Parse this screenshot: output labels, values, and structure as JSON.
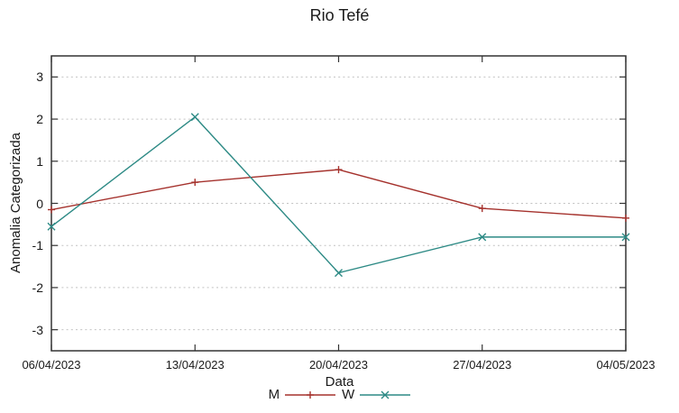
{
  "chart_data": {
    "type": "line",
    "title": "Rio Tefé",
    "xlabel": "Data",
    "ylabel": "Anomalia Categorizada",
    "categories": [
      "06/04/2023",
      "13/04/2023",
      "20/04/2023",
      "27/04/2023",
      "04/05/2023"
    ],
    "series": [
      {
        "name": "M",
        "marker": "plus",
        "color": "#a5322d",
        "values": [
          -0.15,
          0.5,
          0.8,
          -0.12,
          -0.35
        ]
      },
      {
        "name": "W",
        "marker": "cross",
        "color": "#2d8a85",
        "values": [
          -0.55,
          2.05,
          -1.65,
          -0.8,
          -0.8
        ]
      }
    ],
    "ylim": [
      -3.5,
      3.5
    ],
    "yticks": [
      3,
      2,
      1,
      0,
      -1,
      -2,
      -3
    ],
    "grid": "horizontal-dotted",
    "legend_position": "bottom-center"
  },
  "style_colors": {
    "background": "#ffffff",
    "axis_border": "#333333",
    "gridline": "#c2c2c2",
    "text": "#1a1a1a"
  }
}
